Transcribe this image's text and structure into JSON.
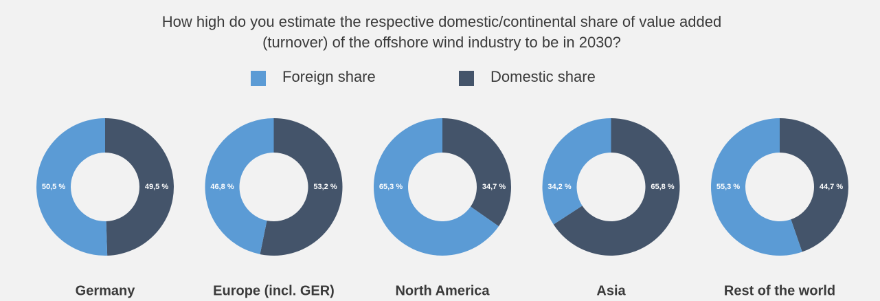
{
  "chart_data": {
    "type": "donut",
    "title": [
      "How high do you estimate the respective domestic/continental share of value added",
      "(turnover) of the offshore wind industry to be in 2030?"
    ],
    "categories": [
      "Germany",
      "Europe (incl. GER)",
      "North America",
      "Asia",
      "Rest of the world"
    ],
    "series": [
      {
        "name": "Foreign share",
        "color": "#5b9bd5",
        "values": [
          50.5,
          46.8,
          65.3,
          34.2,
          55.3
        ],
        "value_labels": [
          "50,5 %",
          "46,8 %",
          "65,3 %",
          "34,2 %",
          "55,3 %"
        ]
      },
      {
        "name": "Domestic share",
        "color": "#44546a",
        "values": [
          49.5,
          53.2,
          34.7,
          65.8,
          44.7
        ],
        "value_labels": [
          "49,5 %",
          "53,2 %",
          "34,7 %",
          "65,8 %",
          "44,7 %"
        ]
      }
    ],
    "legend": "top"
  }
}
